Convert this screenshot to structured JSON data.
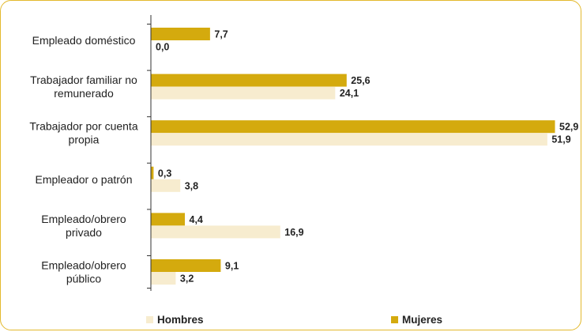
{
  "chart_data": {
    "type": "bar",
    "orientation": "horizontal",
    "categories": [
      [
        "Empleado doméstico"
      ],
      [
        "Trabajador familiar no",
        "remunerado"
      ],
      [
        "Trabajador por cuenta",
        "propia"
      ],
      [
        "Empleador o patrón"
      ],
      [
        "Empleado/obrero",
        "privado"
      ],
      [
        "Empleado/obrero",
        "público"
      ]
    ],
    "series": [
      {
        "name": "Mujeres",
        "color": "#d4aa0e",
        "values": [
          7.7,
          25.6,
          52.9,
          0.3,
          4.4,
          9.1
        ],
        "labels": [
          "7,7",
          "25,6",
          "52,9",
          "0,3",
          "4,4",
          "9,1"
        ]
      },
      {
        "name": "Hombres",
        "color": "#f7eccf",
        "values": [
          0.0,
          24.1,
          51.9,
          3.8,
          16.9,
          3.2
        ],
        "labels": [
          "0,0",
          "24,1",
          "51,9",
          "3,8",
          "16,9",
          "3,2"
        ]
      }
    ],
    "xlim": [
      0,
      53
    ],
    "grid": false,
    "legend": {
      "position": "bottom",
      "items": [
        {
          "name": "Hombres",
          "color": "#f7eccf"
        },
        {
          "name": "Mujeres",
          "color": "#d4aa0e"
        }
      ]
    },
    "axis_color": "#333333"
  }
}
